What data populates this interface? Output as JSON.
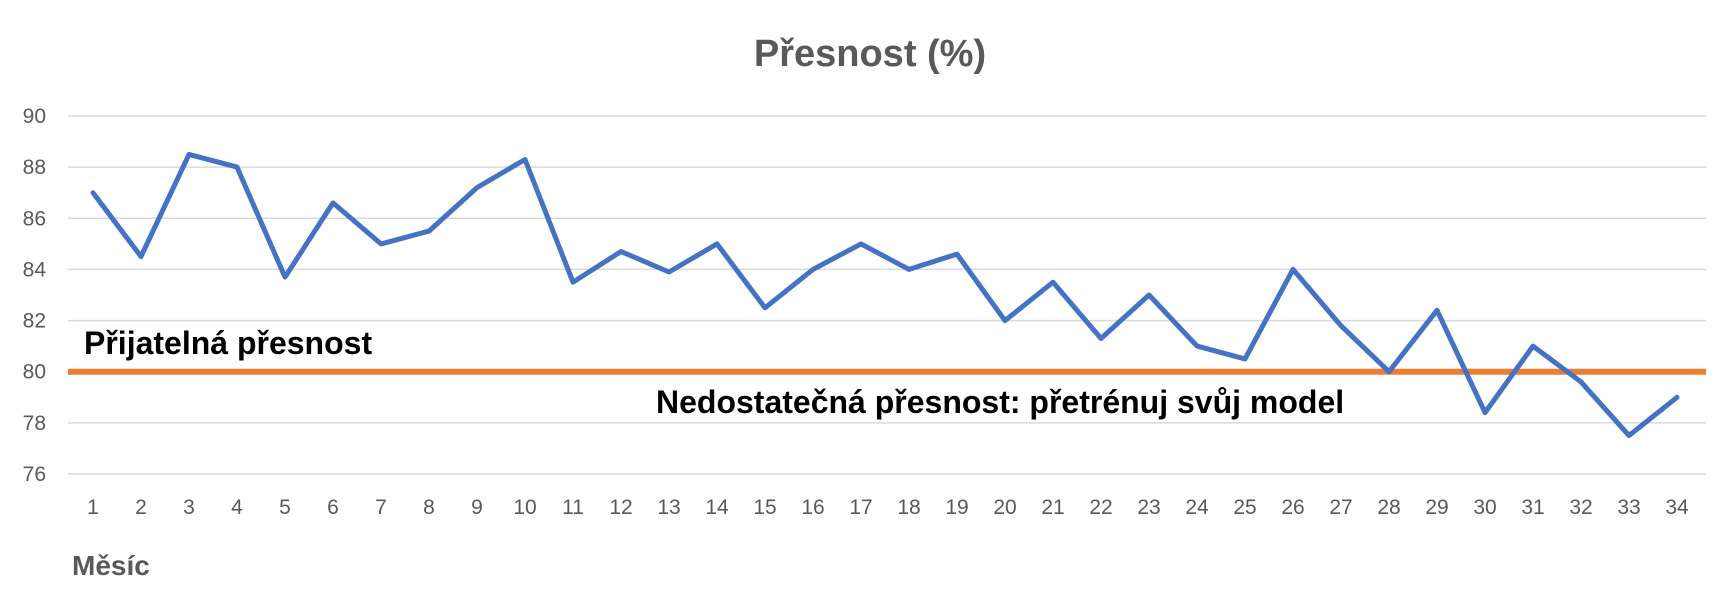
{
  "chart_data": {
    "type": "line",
    "title": "Přesnost (%)",
    "xlabel": "Měsíc",
    "ylabel": "",
    "ylim": [
      76,
      90
    ],
    "y_ticks": [
      76,
      78,
      80,
      82,
      84,
      86,
      88,
      90
    ],
    "grid": true,
    "x": [
      1,
      2,
      3,
      4,
      5,
      6,
      7,
      8,
      9,
      10,
      11,
      12,
      13,
      14,
      15,
      16,
      17,
      18,
      19,
      20,
      21,
      22,
      23,
      24,
      25,
      26,
      27,
      28,
      29,
      30,
      31,
      32,
      33,
      34
    ],
    "series": [
      {
        "name": "",
        "color": "#4472c4",
        "values": [
          87.0,
          84.5,
          88.5,
          88.0,
          83.7,
          86.6,
          85.0,
          85.5,
          87.2,
          88.3,
          83.5,
          84.7,
          83.9,
          85.0,
          82.5,
          84.0,
          85.0,
          84.0,
          84.6,
          82.0,
          83.5,
          81.3,
          83.0,
          81.0,
          80.5,
          84.0,
          81.8,
          80.0,
          82.4,
          78.4,
          81.0,
          79.6,
          77.5,
          79.0
        ]
      }
    ],
    "threshold": {
      "value": 80,
      "color": "#ed7d31",
      "label_above": "Přijatelná přesnost",
      "label_below": "Nedostatečná přesnost: přetrénuj svůj model"
    }
  }
}
